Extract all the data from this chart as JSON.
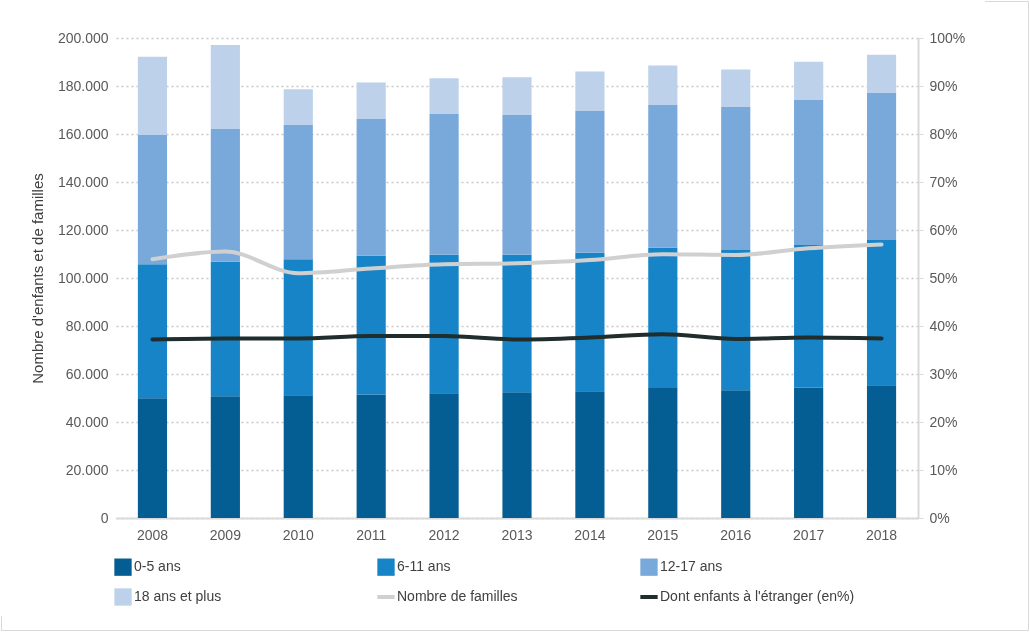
{
  "chart_data": {
    "type": "bar",
    "stacked": true,
    "ylabel": "Nombre d'enfants et de familles",
    "categories": [
      "2008",
      "2009",
      "2010",
      "2011",
      "2012",
      "2013",
      "2014",
      "2015",
      "2016",
      "2017",
      "2018"
    ],
    "series": [
      {
        "name": "0-5 ans",
        "color": "#045d93",
        "values": [
          49900,
          50700,
          51100,
          51500,
          52000,
          52400,
          52800,
          54200,
          53200,
          54400,
          55300
        ]
      },
      {
        "name": "6-11 ans",
        "color": "#1684c7",
        "values": [
          55800,
          56100,
          56700,
          57800,
          57700,
          57300,
          57700,
          58400,
          58500,
          59400,
          60500
        ]
      },
      {
        "name": "12-17 ans",
        "color": "#79a9da",
        "values": [
          53900,
          55300,
          56000,
          57000,
          58600,
          58200,
          59100,
          59500,
          59500,
          60400,
          61300
        ]
      },
      {
        "name": "18 ans et plus",
        "color": "#bdd2ea",
        "values": [
          32600,
          35000,
          14800,
          15200,
          14900,
          15700,
          16400,
          16400,
          15700,
          15900,
          15900
        ]
      },
      {
        "name": "Nombre de familles",
        "type": "line",
        "color": "#d0d0d0",
        "values": [
          107800,
          111000,
          102000,
          104000,
          105700,
          106100,
          107500,
          109900,
          109600,
          112400,
          114000
        ]
      },
      {
        "name": "Dont enfants à l'étranger (en%)",
        "type": "line",
        "axis": "y2",
        "color": "#1f2d2d",
        "values": [
          37.2,
          37.4,
          37.4,
          37.9,
          37.9,
          37.2,
          37.6,
          38.3,
          37.3,
          37.6,
          37.4
        ]
      }
    ],
    "ylim": [
      0,
      200000
    ],
    "yticks": [
      {
        "value": 0,
        "label": "0"
      },
      {
        "value": 20000,
        "label": "20.000"
      },
      {
        "value": 40000,
        "label": "40.000"
      },
      {
        "value": 60000,
        "label": "60.000"
      },
      {
        "value": 80000,
        "label": "80.000"
      },
      {
        "value": 100000,
        "label": "100.000"
      },
      {
        "value": 120000,
        "label": "120.000"
      },
      {
        "value": 140000,
        "label": "140.000"
      },
      {
        "value": 160000,
        "label": "160.000"
      },
      {
        "value": 180000,
        "label": "180.000"
      },
      {
        "value": 200000,
        "label": "200.000"
      }
    ],
    "y2lim": [
      0,
      100
    ],
    "y2ticks": [
      {
        "value": 0,
        "label": "0%"
      },
      {
        "value": 10,
        "label": "10%"
      },
      {
        "value": 20,
        "label": "20%"
      },
      {
        "value": 30,
        "label": "30%"
      },
      {
        "value": 40,
        "label": "40%"
      },
      {
        "value": 50,
        "label": "50%"
      },
      {
        "value": 60,
        "label": "60%"
      },
      {
        "value": 70,
        "label": "70%"
      },
      {
        "value": 80,
        "label": "80%"
      },
      {
        "value": 90,
        "label": "90%"
      },
      {
        "value": 100,
        "label": "100%"
      }
    ],
    "grid": "y",
    "legend": "bottom"
  }
}
